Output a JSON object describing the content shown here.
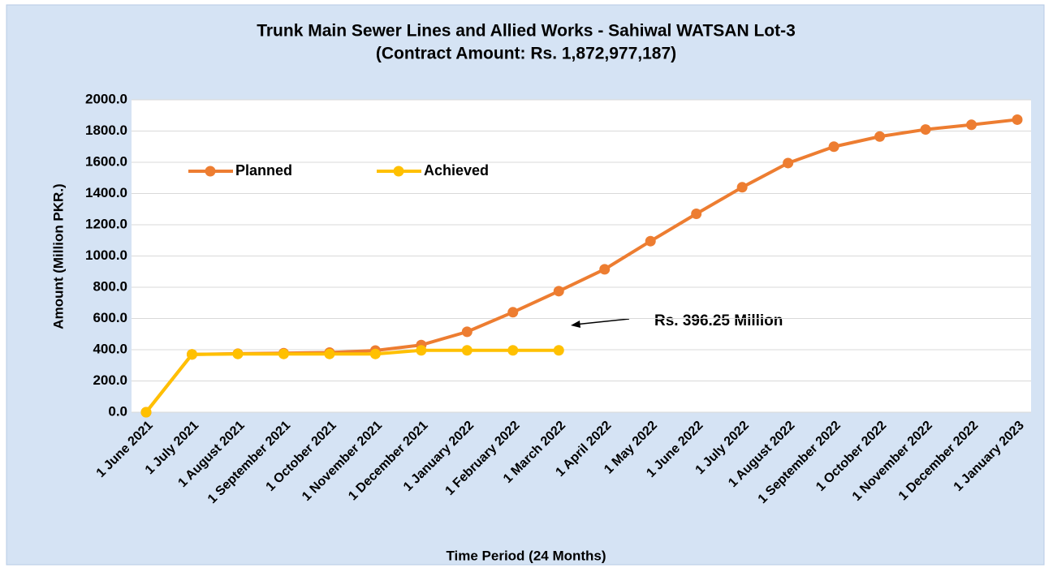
{
  "chart_data": {
    "type": "line",
    "title": "Trunk Main Sewer Lines and Allied Works - Sahiwal WATSAN Lot-3",
    "subtitle": "(Contract Amount: Rs. 1,872,977,187)",
    "x_label": "Time Period (24 Months)",
    "y_label": "Amount (Million PKR.)",
    "annotation": "Rs. 396.25 Million",
    "categories": [
      "1 June 2021",
      "1 July 2021",
      "1 August 2021",
      "1 September 2021",
      "1 October 2021",
      "1 November 2021",
      "1 December 2021",
      "1 January 2022",
      "1 February 2022",
      "1 March 2022",
      "1 April 2022",
      "1 May 2022",
      "1 June 2022",
      "1 July 2022",
      "1 August 2022",
      "1 September 2022",
      "1 October 2022",
      "1 November 2022",
      "1 December 2022",
      "1 January 2023"
    ],
    "series": [
      {
        "name": "Planned",
        "color": "#ed7d31",
        "values": [
          0,
          370,
          375,
          378,
          382,
          395,
          430,
          515,
          640,
          775,
          915,
          1095,
          1270,
          1440,
          1595,
          1700,
          1765,
          1810,
          1840,
          1873
        ]
      },
      {
        "name": "Achieved",
        "color": "#ffc000",
        "values": [
          0,
          370,
          373,
          373,
          373,
          373,
          396,
          396,
          396,
          396,
          null,
          null,
          null,
          null,
          null,
          null,
          null,
          null,
          null,
          null
        ]
      }
    ],
    "ylim": [
      0,
      2000
    ],
    "yticks": [
      {
        "value": 0,
        "label": "0.0"
      },
      {
        "value": 200,
        "label": "200.0"
      },
      {
        "value": 400,
        "label": "400.0"
      },
      {
        "value": 600,
        "label": "600.0"
      },
      {
        "value": 800,
        "label": "800.0"
      },
      {
        "value": 1000,
        "label": "1000.0"
      },
      {
        "value": 1200,
        "label": "1200.0"
      },
      {
        "value": 1400,
        "label": "1400.0"
      },
      {
        "value": 1600,
        "label": "1600.0"
      },
      {
        "value": 1800,
        "label": "1800.0"
      },
      {
        "value": 2000,
        "label": "2000.0"
      }
    ],
    "grid": true,
    "legend": "upper left"
  }
}
